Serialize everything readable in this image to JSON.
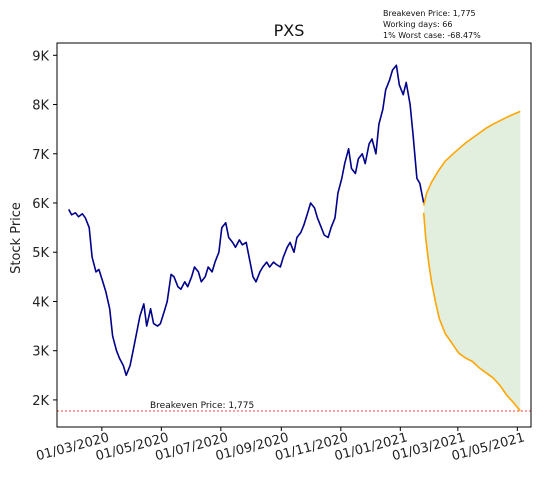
{
  "chart_data": {
    "type": "line",
    "title": "PXS",
    "xlabel": "",
    "ylabel": "Stock Price",
    "ylim": [
      1450,
      9250
    ],
    "xlim": [
      "2020-01-15",
      "2021-05-15"
    ],
    "x_tick_labels": [
      {
        "date": "2020-03-01",
        "label": "01/03/2020"
      },
      {
        "date": "2020-05-01",
        "label": "01/05/2020"
      },
      {
        "date": "2020-07-01",
        "label": "01/07/2020"
      },
      {
        "date": "2020-09-01",
        "label": "01/09/2020"
      },
      {
        "date": "2020-11-01",
        "label": "01/11/2020"
      },
      {
        "date": "2021-01-01",
        "label": "01/01/2021"
      },
      {
        "date": "2021-03-01",
        "label": "01/03/2021"
      },
      {
        "date": "2021-05-01",
        "label": "01/05/2021"
      }
    ],
    "y_tick_labels": [
      {
        "value": 2000,
        "label": "2K"
      },
      {
        "value": 3000,
        "label": "3K"
      },
      {
        "value": 4000,
        "label": "4K"
      },
      {
        "value": 5000,
        "label": "5K"
      },
      {
        "value": 6000,
        "label": "6K"
      },
      {
        "value": 7000,
        "label": "7K"
      },
      {
        "value": 8000,
        "label": "8K"
      },
      {
        "value": 9000,
        "label": "9K"
      }
    ],
    "info_lines": [
      "Breakeven Price: 1,775",
      "Working days: 66",
      "1% Worst case: -68.47%"
    ],
    "breakeven": {
      "value": 1775,
      "label": "Breakeven Price: 1,775",
      "color": "#ff0000"
    },
    "series": [
      {
        "role": "history",
        "color": "#00008b",
        "points": [
          [
            "2020-01-27",
            5870
          ],
          [
            "2020-01-30",
            5760
          ],
          [
            "2020-02-03",
            5800
          ],
          [
            "2020-02-06",
            5720
          ],
          [
            "2020-02-10",
            5780
          ],
          [
            "2020-02-13",
            5700
          ],
          [
            "2020-02-17",
            5500
          ],
          [
            "2020-02-20",
            4900
          ],
          [
            "2020-02-24",
            4600
          ],
          [
            "2020-02-27",
            4650
          ],
          [
            "2020-03-02",
            4400
          ],
          [
            "2020-03-05",
            4200
          ],
          [
            "2020-03-09",
            3850
          ],
          [
            "2020-03-12",
            3300
          ],
          [
            "2020-03-16",
            3000
          ],
          [
            "2020-03-19",
            2850
          ],
          [
            "2020-03-23",
            2700
          ],
          [
            "2020-03-26",
            2500
          ],
          [
            "2020-03-30",
            2700
          ],
          [
            "2020-04-02",
            3000
          ],
          [
            "2020-04-06",
            3400
          ],
          [
            "2020-04-09",
            3700
          ],
          [
            "2020-04-13",
            3950
          ],
          [
            "2020-04-16",
            3500
          ],
          [
            "2020-04-20",
            3850
          ],
          [
            "2020-04-23",
            3550
          ],
          [
            "2020-04-27",
            3500
          ],
          [
            "2020-04-30",
            3550
          ],
          [
            "2020-05-04",
            3800
          ],
          [
            "2020-05-07",
            4000
          ],
          [
            "2020-05-11",
            4550
          ],
          [
            "2020-05-14",
            4500
          ],
          [
            "2020-05-18",
            4300
          ],
          [
            "2020-05-21",
            4250
          ],
          [
            "2020-05-25",
            4400
          ],
          [
            "2020-05-28",
            4300
          ],
          [
            "2020-06-01",
            4500
          ],
          [
            "2020-06-04",
            4700
          ],
          [
            "2020-06-08",
            4600
          ],
          [
            "2020-06-11",
            4400
          ],
          [
            "2020-06-15",
            4500
          ],
          [
            "2020-06-18",
            4700
          ],
          [
            "2020-06-22",
            4600
          ],
          [
            "2020-06-25",
            4800
          ],
          [
            "2020-06-29",
            5000
          ],
          [
            "2020-07-02",
            5500
          ],
          [
            "2020-07-06",
            5600
          ],
          [
            "2020-07-09",
            5300
          ],
          [
            "2020-07-13",
            5200
          ],
          [
            "2020-07-16",
            5100
          ],
          [
            "2020-07-20",
            5250
          ],
          [
            "2020-07-23",
            5150
          ],
          [
            "2020-07-27",
            5200
          ],
          [
            "2020-07-30",
            4900
          ],
          [
            "2020-08-03",
            4500
          ],
          [
            "2020-08-06",
            4400
          ],
          [
            "2020-08-10",
            4600
          ],
          [
            "2020-08-13",
            4700
          ],
          [
            "2020-08-17",
            4800
          ],
          [
            "2020-08-20",
            4700
          ],
          [
            "2020-08-24",
            4800
          ],
          [
            "2020-08-27",
            4750
          ],
          [
            "2020-08-31",
            4700
          ],
          [
            "2020-09-03",
            4900
          ],
          [
            "2020-09-07",
            5100
          ],
          [
            "2020-09-10",
            5200
          ],
          [
            "2020-09-14",
            5000
          ],
          [
            "2020-09-17",
            5300
          ],
          [
            "2020-09-21",
            5400
          ],
          [
            "2020-09-24",
            5550
          ],
          [
            "2020-09-28",
            5800
          ],
          [
            "2020-10-01",
            6000
          ],
          [
            "2020-10-05",
            5900
          ],
          [
            "2020-10-08",
            5700
          ],
          [
            "2020-10-12",
            5500
          ],
          [
            "2020-10-15",
            5350
          ],
          [
            "2020-10-19",
            5300
          ],
          [
            "2020-10-22",
            5500
          ],
          [
            "2020-10-26",
            5700
          ],
          [
            "2020-10-29",
            6200
          ],
          [
            "2020-11-02",
            6500
          ],
          [
            "2020-11-05",
            6800
          ],
          [
            "2020-11-09",
            7100
          ],
          [
            "2020-11-12",
            6700
          ],
          [
            "2020-11-16",
            6600
          ],
          [
            "2020-11-19",
            6900
          ],
          [
            "2020-11-23",
            7000
          ],
          [
            "2020-11-26",
            6800
          ],
          [
            "2020-11-30",
            7200
          ],
          [
            "2020-12-03",
            7300
          ],
          [
            "2020-12-07",
            7000
          ],
          [
            "2020-12-10",
            7600
          ],
          [
            "2020-12-14",
            7900
          ],
          [
            "2020-12-17",
            8300
          ],
          [
            "2020-12-21",
            8500
          ],
          [
            "2020-12-24",
            8700
          ],
          [
            "2020-12-28",
            8800
          ],
          [
            "2020-12-31",
            8400
          ],
          [
            "2021-01-04",
            8200
          ],
          [
            "2021-01-07",
            8450
          ],
          [
            "2021-01-11",
            8000
          ],
          [
            "2021-01-14",
            7400
          ],
          [
            "2021-01-18",
            6500
          ],
          [
            "2021-01-21",
            6400
          ],
          [
            "2021-01-25",
            6000
          ]
        ]
      },
      {
        "role": "upper-projection",
        "color": "#ffa500",
        "points": [
          [
            "2021-01-25",
            5950
          ],
          [
            "2021-01-28",
            6200
          ],
          [
            "2021-02-02",
            6420
          ],
          [
            "2021-02-09",
            6650
          ],
          [
            "2021-02-16",
            6850
          ],
          [
            "2021-02-23",
            6980
          ],
          [
            "2021-03-02",
            7100
          ],
          [
            "2021-03-09",
            7220
          ],
          [
            "2021-03-16",
            7320
          ],
          [
            "2021-03-23",
            7420
          ],
          [
            "2021-03-30",
            7520
          ],
          [
            "2021-04-06",
            7600
          ],
          [
            "2021-04-13",
            7670
          ],
          [
            "2021-04-20",
            7740
          ],
          [
            "2021-04-27",
            7800
          ],
          [
            "2021-05-04",
            7860
          ]
        ]
      },
      {
        "role": "lower-projection",
        "color": "#ffa500",
        "points": [
          [
            "2021-01-25",
            5800
          ],
          [
            "2021-01-27",
            5300
          ],
          [
            "2021-01-30",
            4800
          ],
          [
            "2021-02-02",
            4400
          ],
          [
            "2021-02-06",
            4000
          ],
          [
            "2021-02-10",
            3650
          ],
          [
            "2021-02-16",
            3350
          ],
          [
            "2021-02-23",
            3150
          ],
          [
            "2021-03-02",
            2950
          ],
          [
            "2021-03-09",
            2850
          ],
          [
            "2021-03-16",
            2780
          ],
          [
            "2021-03-23",
            2650
          ],
          [
            "2021-03-30",
            2550
          ],
          [
            "2021-04-06",
            2450
          ],
          [
            "2021-04-13",
            2300
          ],
          [
            "2021-04-20",
            2100
          ],
          [
            "2021-04-27",
            1950
          ],
          [
            "2021-05-01",
            1850
          ],
          [
            "2021-05-04",
            1780
          ]
        ]
      }
    ],
    "fill_between": {
      "upper": "upper-projection",
      "lower": "lower-projection",
      "color": "#d9ead3"
    },
    "grid": false
  }
}
